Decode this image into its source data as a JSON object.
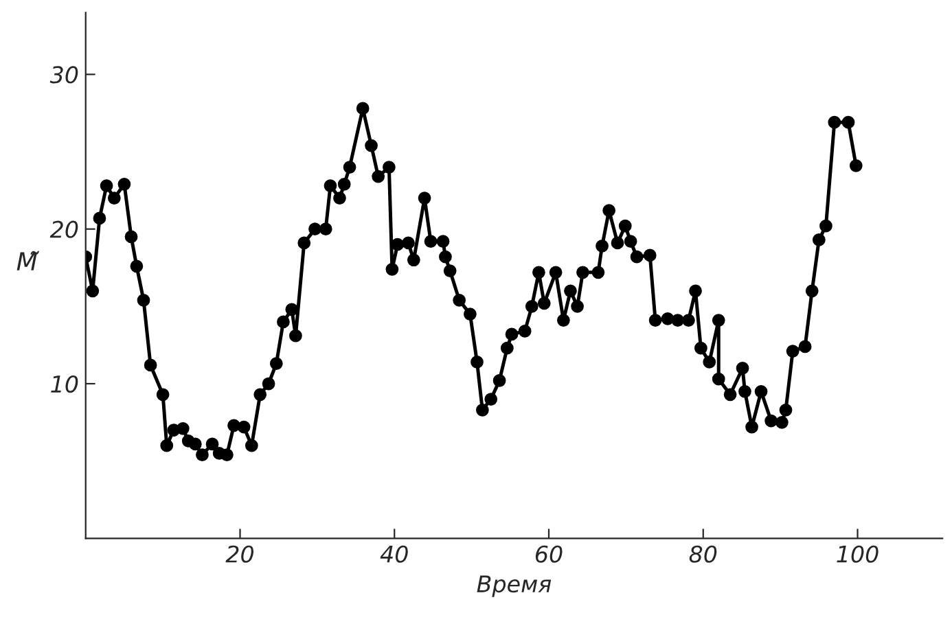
{
  "chart_data": {
    "type": "line",
    "xlabel": "Время",
    "ylabel": "M̃",
    "xlim": [
      0,
      111
    ],
    "ylim": [
      0,
      34
    ],
    "xticks": [
      20,
      40,
      60,
      80,
      100
    ],
    "yticks": [
      10,
      20,
      30
    ],
    "grid": false,
    "marker": "circle",
    "line_style": "solid",
    "series": [
      {
        "color": "#000000",
        "x": [
          0,
          0.9,
          1.8,
          2.7,
          3.7,
          5.0,
          5.9,
          6.6,
          7.5,
          8.4,
          10.0,
          10.5,
          11.4,
          12.6,
          13.3,
          14.2,
          15.1,
          16.4,
          17.3,
          18.3,
          19.2,
          20.5,
          21.5,
          22.6,
          23.7,
          24.7,
          25.6,
          26.7,
          27.2,
          28.3,
          29.7,
          31.1,
          31.7,
          32.9,
          33.5,
          34.2,
          35.9,
          37.0,
          37.9,
          39.3,
          39.7,
          40.4,
          41.8,
          42.5,
          43.9,
          44.7,
          46.3,
          46.6,
          47.2,
          48.4,
          49.8,
          50.7,
          51.4,
          52.5,
          53.6,
          54.6,
          55.2,
          56.9,
          57.8,
          58.7,
          59.4,
          60.9,
          61.9,
          62.8,
          63.7,
          64.4,
          66.4,
          66.9,
          67.8,
          68.9,
          69.9,
          70.6,
          71.4,
          73.1,
          73.8,
          75.4,
          76.7,
          78.1,
          79.0,
          79.7,
          80.8,
          82.0,
          82.0,
          83.5,
          85.1,
          85.4,
          86.3,
          87.5,
          88.8,
          90.2,
          90.7,
          91.6,
          93.2,
          94.1,
          95.0,
          95.9,
          97.0,
          98.8,
          99.8
        ],
        "values": [
          18.2,
          16.0,
          20.7,
          22.8,
          22.0,
          22.9,
          19.5,
          17.6,
          15.4,
          11.2,
          9.3,
          6.0,
          7.0,
          7.1,
          6.3,
          6.1,
          5.4,
          6.1,
          5.5,
          5.4,
          7.3,
          7.2,
          6.0,
          9.3,
          10.0,
          11.3,
          14.0,
          14.8,
          13.1,
          19.1,
          20.0,
          20.0,
          22.8,
          22.0,
          22.9,
          24.0,
          27.8,
          25.4,
          23.4,
          24.0,
          17.4,
          19.0,
          19.1,
          18.0,
          22.0,
          19.2,
          19.2,
          18.2,
          17.3,
          15.4,
          14.5,
          11.4,
          8.3,
          9.0,
          10.2,
          12.3,
          13.2,
          13.4,
          15.0,
          17.2,
          15.2,
          17.2,
          14.1,
          16.0,
          15.0,
          17.2,
          17.2,
          18.9,
          21.2,
          19.1,
          20.2,
          19.2,
          18.2,
          18.3,
          14.1,
          14.2,
          14.1,
          14.1,
          16.0,
          12.3,
          11.4,
          14.1,
          10.3,
          9.3,
          11.0,
          9.5,
          7.2,
          9.5,
          7.6,
          7.5,
          8.3,
          12.1,
          12.4,
          16.0,
          19.3,
          20.2,
          26.9,
          26.9,
          24.1
        ]
      }
    ]
  }
}
